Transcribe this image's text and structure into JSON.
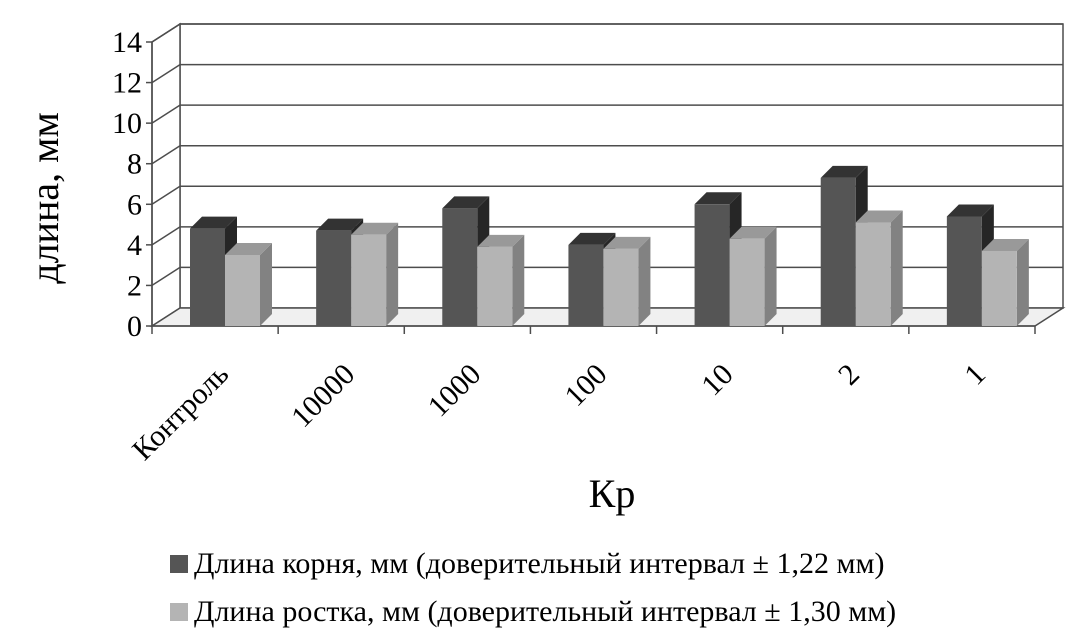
{
  "chart_data": {
    "type": "bar",
    "categories": [
      "Контроль",
      "10000",
      "1000",
      "100",
      "10",
      "2",
      "1"
    ],
    "series": [
      {
        "name": "Длина корня, мм (доверительный интервал ± 1,22 мм)",
        "values": [
          4.8,
          4.7,
          5.8,
          4.0,
          6.0,
          7.3,
          5.4
        ],
        "color": "#555555"
      },
      {
        "name": "Длина ростка, мм (доверительный интервал ± 1,30 мм)",
        "values": [
          3.5,
          4.5,
          3.9,
          3.8,
          4.3,
          5.1,
          3.7
        ],
        "color": "#b4b4b4"
      }
    ],
    "xlabel": "Кр",
    "ylabel": "длина, мм",
    "ylim": [
      0,
      14
    ],
    "yticks": [
      "0",
      "2",
      "4",
      "6",
      "8",
      "10",
      "12",
      "14"
    ],
    "grid": true,
    "legend_position": "bottom",
    "style": "3d-clustered-column"
  }
}
